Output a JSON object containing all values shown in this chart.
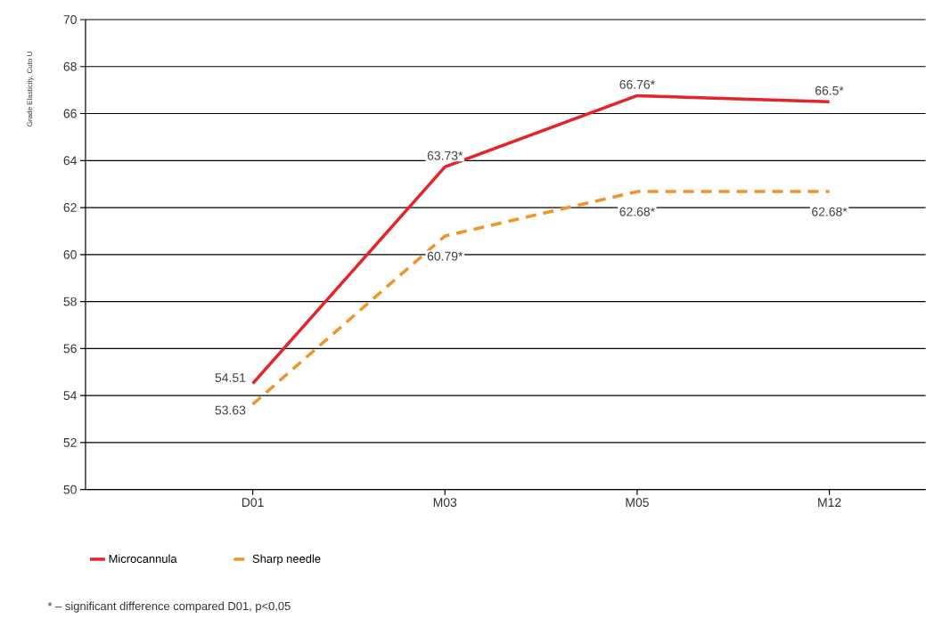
{
  "chart_data": {
    "type": "line",
    "ylabel": "Grade Elasticity, Cuto U",
    "categories": [
      "D01",
      "M03",
      "M05",
      "M12"
    ],
    "series": [
      {
        "name": "Microcannula",
        "color": "#e3242b",
        "line_style": "solid",
        "values": [
          54.51,
          63.73,
          66.76,
          66.5
        ],
        "value_labels": [
          "54.51",
          "63.73*",
          "66.76*",
          "66.5*"
        ]
      },
      {
        "name": "Sharp needle",
        "color": "#f0932b",
        "line_style": "dashed",
        "values": [
          53.63,
          60.79,
          62.68,
          62.68
        ],
        "value_labels": [
          "53.63",
          "60.79*",
          "62.68*",
          "62.68*"
        ]
      }
    ],
    "ylim": [
      50,
      70
    ],
    "yticks": [
      50,
      52,
      54,
      56,
      58,
      60,
      62,
      64,
      66,
      68,
      70
    ],
    "grid": "y",
    "legend": "bottom",
    "marker": "none",
    "annotations": [
      "* – significant difference compared D01, p<0,05"
    ]
  }
}
